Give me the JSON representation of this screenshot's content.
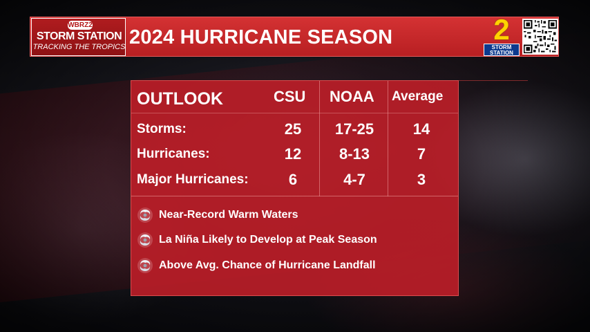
{
  "logo": {
    "network_badge": "WBRZ2",
    "title": "STORM STATION",
    "subtitle": "TRACKING THE TROPICS"
  },
  "header": {
    "title": "2024 HURRICANE SEASON"
  },
  "channel_logo": {
    "number": "2",
    "line1": "STORM",
    "line2": "STATION"
  },
  "table": {
    "headers": {
      "label": "OUTLOOK",
      "col1": "CSU",
      "col2": "NOAA",
      "col3": "Average"
    },
    "rows": [
      {
        "label": "Storms:",
        "csu": "25",
        "noaa": "17-25",
        "average": "14"
      },
      {
        "label": "Hurricanes:",
        "csu": "12",
        "noaa": "8-13",
        "average": "7"
      },
      {
        "label": "Major Hurricanes:",
        "csu": "6",
        "noaa": "4-7",
        "average": "3"
      }
    ]
  },
  "bullets": [
    {
      "icon": "hurricane-icon",
      "text": "Near-Record Warm Waters"
    },
    {
      "icon": "hurricane-icon",
      "text": "La Niña Likely to Develop at Peak Season"
    },
    {
      "icon": "hurricane-icon",
      "text": "Above Avg. Chance of Hurricane Landfall"
    }
  ],
  "colors": {
    "brand_red": "#c8262b",
    "channel_yellow": "#ffd200",
    "channel_blue": "#0d3a8e"
  }
}
